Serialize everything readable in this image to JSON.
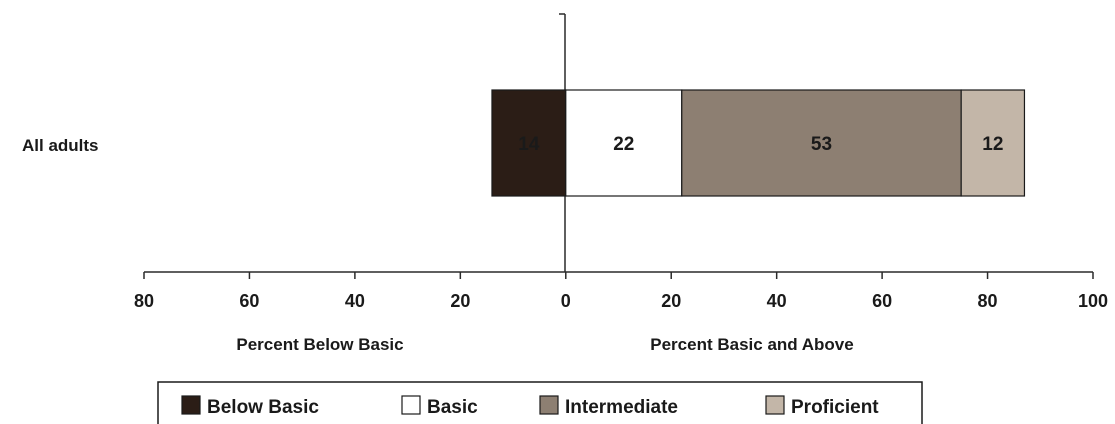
{
  "chart_data": {
    "type": "bar",
    "orientation": "horizontal",
    "stacking": "diverging",
    "categories": [
      "All adults"
    ],
    "series": [
      {
        "name": "Below Basic",
        "values": [
          14
        ],
        "direction": "negative",
        "color": "#2b1d16"
      },
      {
        "name": "Basic",
        "values": [
          22
        ],
        "direction": "positive",
        "color": "#ffffff"
      },
      {
        "name": "Intermediate",
        "values": [
          53
        ],
        "direction": "positive",
        "color": "#8d7f72"
      },
      {
        "name": "Proficient",
        "values": [
          12
        ],
        "direction": "positive",
        "color": "#c3b6a8"
      }
    ],
    "x_ticks": [
      "80",
      "60",
      "40",
      "20",
      "0",
      "20",
      "40",
      "60",
      "80",
      "100"
    ],
    "xlim": [
      -80,
      100
    ],
    "xlabel_left": "Percent Below Basic",
    "xlabel_right": "Percent Basic and Above",
    "legend": {
      "placement": "bottom",
      "entries": [
        "Below Basic",
        "Basic",
        "Intermediate",
        "Proficient"
      ]
    },
    "grid": false
  }
}
